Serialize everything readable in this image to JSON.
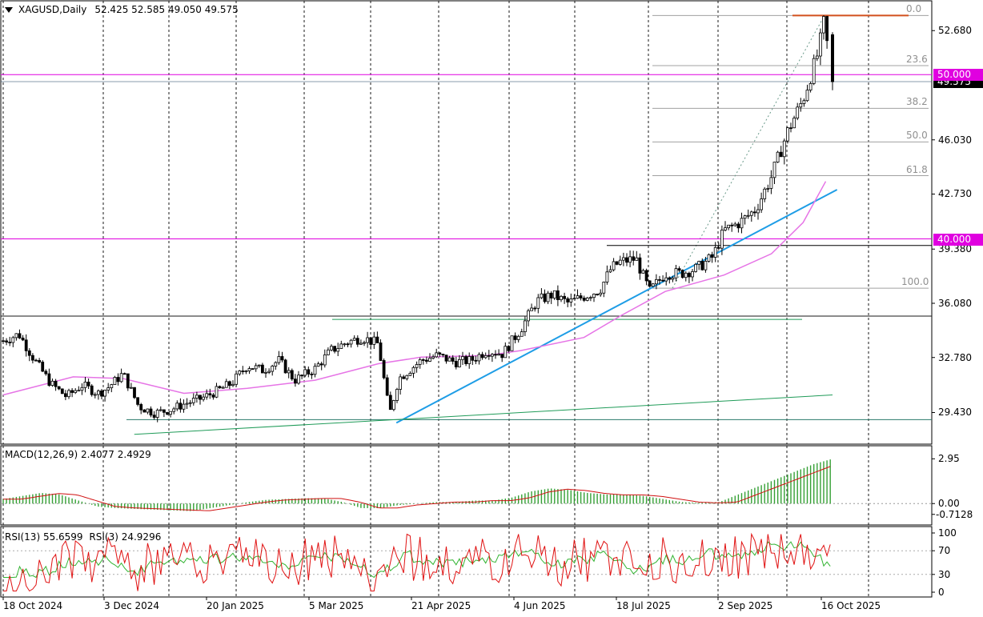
{
  "header": {
    "symbol_tf": "XAGUSD,Daily",
    "ohlc": "52.425 52.585 49.050 49.575"
  },
  "colors": {
    "bull_candle": "#000000",
    "bear_candle": "#000000",
    "sma": "#e674e6",
    "trend_blue": "#1e9de6",
    "trend_green": "#1f9b58",
    "fib": "#a0a0a0",
    "level_magenta": "#e000e0",
    "fib_top": "#d2501e",
    "macd_hist": "#35a035",
    "macd_signal": "#d01010",
    "rsi13": "#32b432",
    "rsi3": "#e01010",
    "grid": "#000000"
  },
  "main_axis": {
    "ticks": [
      "52.680",
      "46.030",
      "42.730",
      "39.380",
      "36.080",
      "32.780",
      "29.430"
    ],
    "ylim": [
      27.7,
      54.3
    ]
  },
  "x_axis": {
    "labels": [
      "18 Oct 2024",
      "3 Dec 2024",
      "20 Jan 2025",
      "5 Mar 2025",
      "21 Apr 2025",
      "4 Jun 2025",
      "18 Jul 2025",
      "2 Sep 2025",
      "16 Oct 2025"
    ]
  },
  "fibonacci": {
    "levels": [
      {
        "label": "0.0",
        "price": 53.6
      },
      {
        "label": "23.6",
        "price": 50.55
      },
      {
        "label": "38.2",
        "price": 47.95
      },
      {
        "label": "50.0",
        "price": 45.9
      },
      {
        "label": "61.8",
        "price": 43.85
      },
      {
        "label": "100.0",
        "price": 37.0
      }
    ]
  },
  "price_tags": [
    {
      "text": "50.000",
      "price": 50.0,
      "style": "magenta"
    },
    {
      "text": "49.575",
      "price": 49.575,
      "style": "dark"
    },
    {
      "text": "40.000",
      "price": 40.0,
      "style": "magenta"
    }
  ],
  "macd": {
    "title": "MACD(12,26,9) 2.4077 2.4929",
    "ticks": [
      "2.95",
      "0.00",
      "-0.7128"
    ],
    "ylim": [
      -1.2,
      3.6
    ]
  },
  "rsi": {
    "title_a": "RSI(13) 55.6599",
    "title_b": "RSI(3) 24.9296",
    "ticks": [
      "100",
      "70",
      "30",
      "0"
    ]
  },
  "chart_data": {
    "type": "candlestick",
    "title": "XAGUSD,Daily",
    "x_range": [
      "18 Oct 2024",
      "16 Oct 2025"
    ],
    "ylim": [
      27.7,
      54.3
    ],
    "last_bar": {
      "open": 52.425,
      "high": 52.585,
      "low": 49.05,
      "close": 49.575
    },
    "close_path": [
      [
        "18 Oct 2024",
        33.8
      ],
      [
        "25 Oct 2024",
        34.2
      ],
      [
        "1 Nov 2024",
        32.6
      ],
      [
        "8 Nov 2024",
        31.2
      ],
      [
        "15 Nov 2024",
        30.4
      ],
      [
        "22 Nov 2024",
        31.1
      ],
      [
        "29 Nov 2024",
        30.6
      ],
      [
        "3 Dec 2024",
        30.9
      ],
      [
        "10 Dec 2024",
        31.8
      ],
      [
        "17 Dec 2024",
        29.8
      ],
      [
        "24 Dec 2024",
        29.4
      ],
      [
        "31 Dec 2024",
        29.6
      ],
      [
        "7 Jan 2025",
        30.0
      ],
      [
        "14 Jan 2025",
        30.3
      ],
      [
        "20 Jan 2025",
        30.7
      ],
      [
        "27 Jan 2025",
        31.2
      ],
      [
        "3 Feb 2025",
        32.3
      ],
      [
        "10 Feb 2025",
        32.0
      ],
      [
        "17 Feb 2025",
        32.6
      ],
      [
        "24 Feb 2025",
        31.4
      ],
      [
        "5 Mar 2025",
        32.1
      ],
      [
        "12 Mar 2025",
        33.2
      ],
      [
        "19 Mar 2025",
        33.7
      ],
      [
        "26 Mar 2025",
        34.0
      ],
      [
        "2 Apr 2025",
        33.6
      ],
      [
        "7 Apr 2025",
        29.3
      ],
      [
        "11 Apr 2025",
        31.5
      ],
      [
        "21 Apr 2025",
        32.6
      ],
      [
        "28 Apr 2025",
        32.9
      ],
      [
        "6 May 2025",
        32.5
      ],
      [
        "13 May 2025",
        32.6
      ],
      [
        "20 May 2025",
        33.2
      ],
      [
        "27 May 2025",
        33.0
      ],
      [
        "4 Jun 2025",
        34.5
      ],
      [
        "11 Jun 2025",
        36.2
      ],
      [
        "18 Jun 2025",
        36.6
      ],
      [
        "25 Jun 2025",
        36.1
      ],
      [
        "2 Jul 2025",
        36.5
      ],
      [
        "9 Jul 2025",
        36.9
      ],
      [
        "14 Jul 2025",
        38.2
      ],
      [
        "18 Jul 2025",
        38.6
      ],
      [
        "25 Jul 2025",
        38.8
      ],
      [
        "31 Jul 2025",
        36.8
      ],
      [
        "7 Aug 2025",
        37.9
      ],
      [
        "14 Aug 2025",
        37.9
      ],
      [
        "21 Aug 2025",
        38.2
      ],
      [
        "28 Aug 2025",
        38.9
      ],
      [
        "2 Sep 2025",
        40.5
      ],
      [
        "9 Sep 2025",
        41.0
      ],
      [
        "16 Sep 2025",
        41.8
      ],
      [
        "23 Sep 2025",
        43.8
      ],
      [
        "30 Sep 2025",
        46.5
      ],
      [
        "7 Oct 2025",
        48.5
      ],
      [
        "14 Oct 2025",
        51.5
      ],
      [
        "16 Oct 2025",
        53.2
      ],
      [
        "17 Oct 2025",
        52.425
      ],
      [
        "20 Oct 2025",
        49.575
      ]
    ],
    "sma_path": [
      [
        "18 Oct 2024",
        30.5
      ],
      [
        "18 Nov 2024",
        31.6
      ],
      [
        "10 Dec 2024",
        31.5
      ],
      [
        "6 Jan 2025",
        30.6
      ],
      [
        "3 Feb 2025",
        30.9
      ],
      [
        "5 Mar 2025",
        31.4
      ],
      [
        "2 Apr 2025",
        32.4
      ],
      [
        "21 Apr 2025",
        32.8
      ],
      [
        "20 May 2025",
        32.9
      ],
      [
        "4 Jun 2025",
        33.2
      ],
      [
        "2 Jul 2025",
        34.0
      ],
      [
        "18 Jul 2025",
        35.3
      ],
      [
        "7 Aug 2025",
        36.8
      ],
      [
        "2 Sep 2025",
        37.8
      ],
      [
        "23 Sep 2025",
        39.1
      ],
      [
        "7 Oct 2025",
        41.0
      ],
      [
        "17 Oct 2025",
        43.5
      ]
    ],
    "horizontal_levels": [
      50.0,
      49.575,
      40.0,
      39.6,
      35.3,
      29.0
    ],
    "trendlines": [
      {
        "from": [
          "10 Apr 2025",
          28.8
        ],
        "to": [
          "22 Oct 2025",
          43.0
        ],
        "color": "blue"
      },
      {
        "from": [
          "15 Dec 2024",
          28.1
        ],
        "to": [
          "20 Oct 2025",
          30.5
        ],
        "color": "green"
      }
    ]
  }
}
